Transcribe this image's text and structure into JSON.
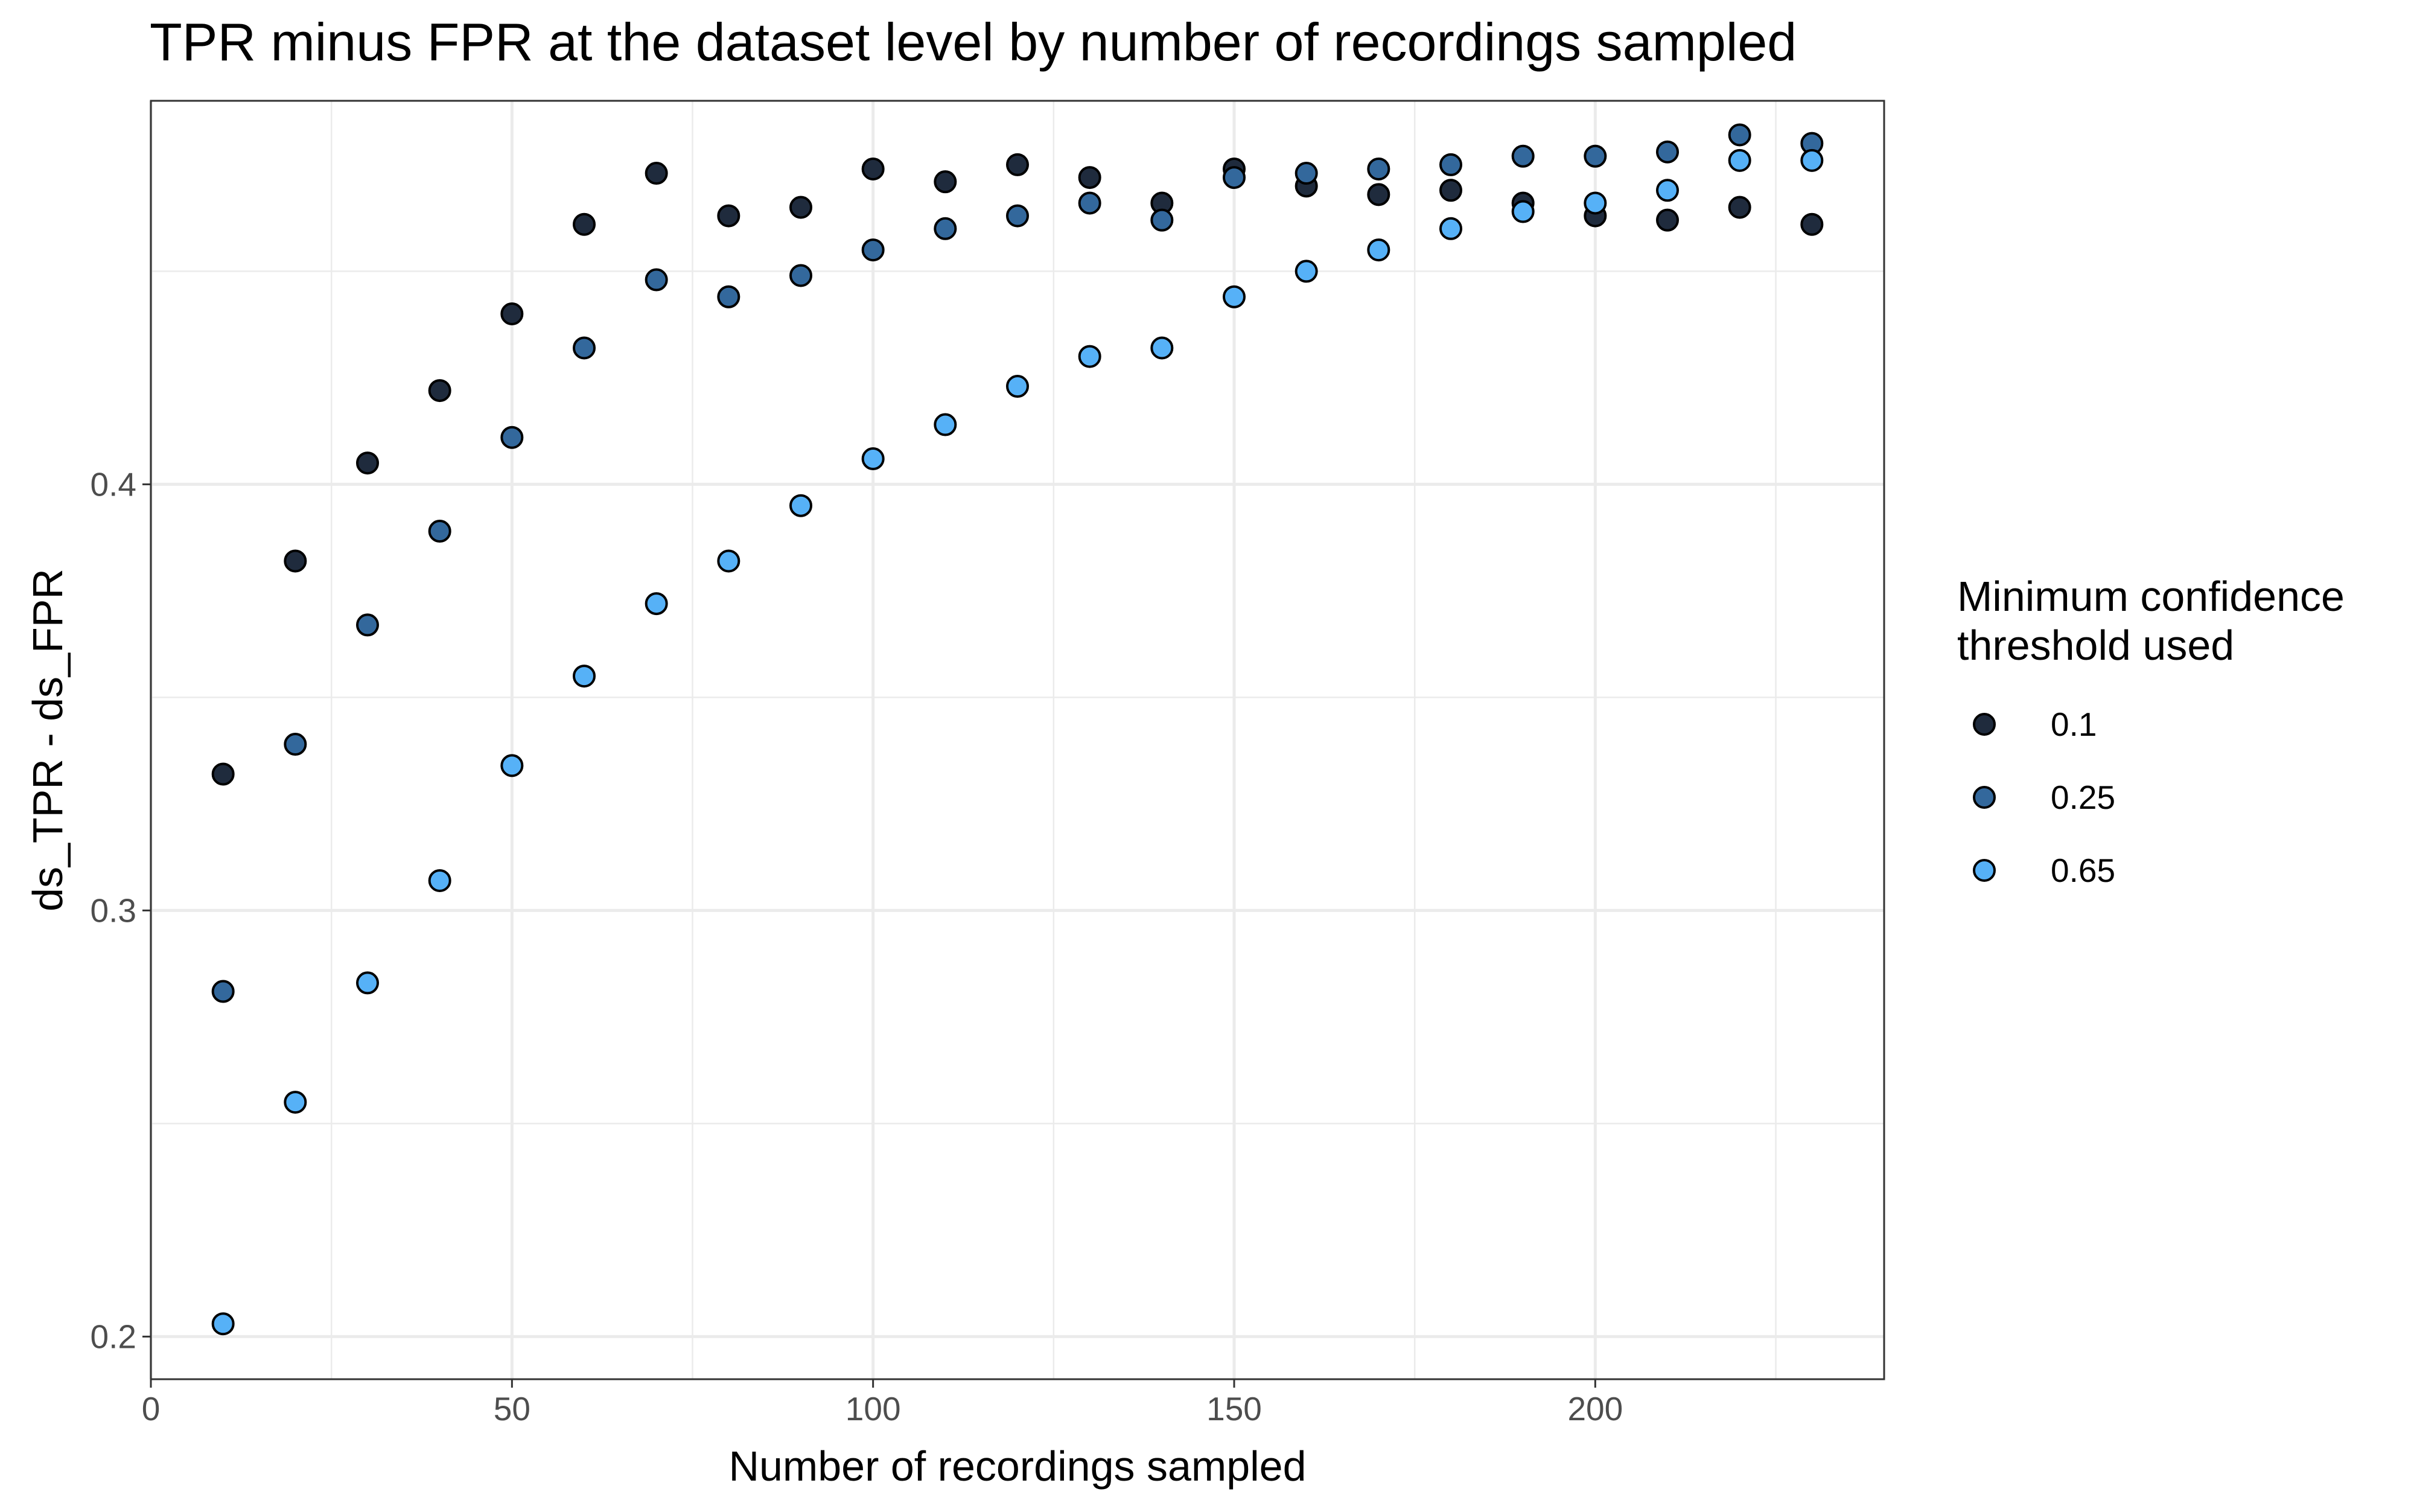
{
  "chart_data": {
    "type": "scatter",
    "title": "TPR minus FPR at the dataset level by number of recordings sampled",
    "xlabel": "Number of recordings sampled",
    "ylabel": "ds_TPR - ds_FPR",
    "xlim": [
      0,
      240
    ],
    "ylim": [
      0.19,
      0.49
    ],
    "x_ticks": [
      0,
      50,
      100,
      150,
      200
    ],
    "x_tick_labels": [
      "0",
      "50",
      "100",
      "150",
      "200"
    ],
    "y_ticks": [
      0.2,
      0.3,
      0.4
    ],
    "y_tick_labels": [
      "0.2",
      "0.3",
      "0.4"
    ],
    "grid": true,
    "legend": {
      "title_lines": [
        "Minimum confidence",
        "threshold used"
      ],
      "position": "right"
    },
    "x": [
      10,
      20,
      30,
      40,
      50,
      60,
      70,
      80,
      90,
      100,
      110,
      120,
      130,
      140,
      150,
      160,
      170,
      180,
      190,
      200,
      210,
      220,
      230
    ],
    "series": [
      {
        "name": "0.1",
        "color": "#1f2b3d",
        "values": [
          0.332,
          0.382,
          0.405,
          0.422,
          0.44,
          0.461,
          0.473,
          0.463,
          0.465,
          0.474,
          0.471,
          0.475,
          0.472,
          0.466,
          0.474,
          0.47,
          0.468,
          0.469,
          0.466,
          0.463,
          0.462,
          0.465,
          0.461
        ]
      },
      {
        "name": "0.25",
        "color": "#33689c",
        "values": [
          0.281,
          0.339,
          0.367,
          0.389,
          0.411,
          0.432,
          0.448,
          0.444,
          0.449,
          0.455,
          0.46,
          0.463,
          0.466,
          0.462,
          0.472,
          0.473,
          0.474,
          0.475,
          0.477,
          0.477,
          0.478,
          0.482,
          0.48
        ]
      },
      {
        "name": "0.65",
        "color": "#56b1f7",
        "values": [
          0.203,
          0.255,
          0.283,
          0.307,
          0.334,
          0.355,
          0.372,
          0.382,
          0.395,
          0.406,
          0.414,
          0.423,
          0.43,
          0.432,
          0.444,
          0.45,
          0.455,
          0.46,
          0.464,
          0.466,
          0.469,
          0.476,
          0.476
        ]
      }
    ]
  }
}
